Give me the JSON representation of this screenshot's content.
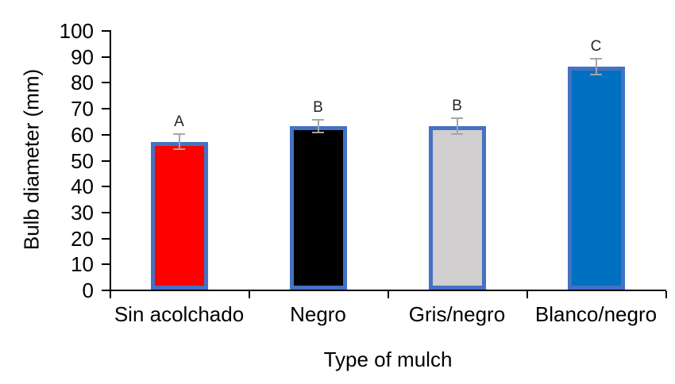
{
  "chart_data": {
    "type": "bar",
    "title": "",
    "xlabel": "Type of mulch",
    "ylabel": "Bulb diameter (mm)",
    "categories": [
      "Sin acolchado",
      "Negro",
      "Gris/negro",
      "Blanco/negro"
    ],
    "values": [
      57,
      63,
      63,
      86
    ],
    "errors": [
      3,
      2.5,
      3,
      3
    ],
    "significance_letters": [
      "A",
      "B",
      "B",
      "C"
    ],
    "ylim": [
      0,
      100
    ],
    "ytick_step": 10,
    "ytick_labels": [
      "0",
      "10",
      "20",
      "30",
      "40",
      "50",
      "60",
      "70",
      "80",
      "90",
      "100"
    ],
    "grid": false,
    "legend": null,
    "colors": {
      "bar_fills": [
        "#FF0000",
        "#000000",
        "#D0CECE",
        "#0070C0"
      ],
      "bar_border": "#4472C4",
      "error_bar": "#A6A6A6",
      "axis": "#000000",
      "letter": "#262626"
    }
  }
}
